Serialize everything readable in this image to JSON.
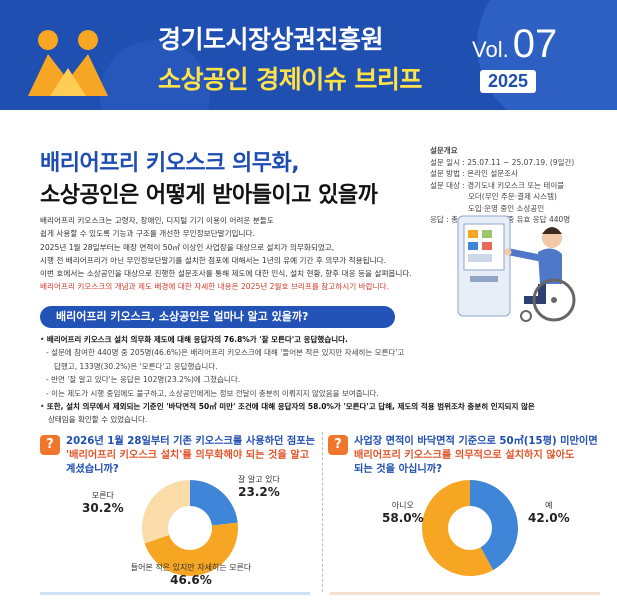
{
  "header": {
    "org": "경기도시장상권진흥원",
    "series": "소상공인 경제이슈 브리프",
    "vol_prefix": "Vol.",
    "vol_num": "07",
    "year": "2025"
  },
  "title": {
    "line1": "배리어프리 키오스크 의무화,",
    "line2": "소상공인은 어떻게 받아들이고 있을까"
  },
  "survey": {
    "heading": "설문개요",
    "period": "설문 일시 : 25.07.11 ~ 25.07.19. (9일간)",
    "method": "설문 방법 : 온라인 설문조사",
    "target1": "설문 대상 : 경기도내 키오스크 또는 테이블",
    "target2": "오더(무인 주문·결제 시스템)",
    "target3": "도입·운영 중인 소상공인",
    "response": "응답 : 총 1,113명 응답 중 유효 응답 440명"
  },
  "intro": {
    "p1": "배리어프리 키오스크는 고령자, 장애인, 디지털 기기 이용이 어려운 분들도",
    "p2": "쉽게 사용할 수 있도록 기능과 구조를 개선한 무인정보단말기입니다.",
    "p3": "2025년 1월 28일부터는 매장 면적이 50㎡ 이상인 사업장을 대상으로 설치가 의무화되었고,",
    "p4": "시행 전 배리어프리가 아닌 무인정보단말기를 설치한 점포에 대해서는 1년의 유예 기간 후 의무가 적용됩니다.",
    "p5": "이번 호에서는 소상공인을 대상으로 진행한 설문조사를 통해 제도에 대한 인식, 설치 현황, 향후 대응 등을 살펴봅니다.",
    "note": "배리어프리 키오스크의 개념과 제도 배경에 대한 자세한 내용은 2025년 2월호 브리프를 참고하시기 바랍니다."
  },
  "section": {
    "heading": "배리어프리 키오스크, 소상공인은 얼마나 알고 있을까?",
    "b1": "배리어프리 키오스크 설치 의무화 제도에 대해 응답자의 76.8%가 '잘 모른다'고 응답했습니다.",
    "s1a": "설문에 참여한 440명 중 205명(46.6%)은 배리어프리 키오스크에 대해 '들어본 적은 있지만 자세히는 모른다'고",
    "s1b": "답했고, 133명(30.2%)은 '모른다'고 응답했습니다.",
    "s2": "반면 '잘 알고 있다'는 응답은 102명(23.2%)에 그쳤습니다.",
    "s3": "이는 제도가 시행 중임에도 불구하고, 소상공인에게는 정보 전달이 충분히 이뤄지지 않았음을 보여줍니다.",
    "b2a": "또한, 설치 의무에서 제외되는 기준인 '바닥면적 50㎡ 미만' 조건에 대해 응답자의 58.0%가 '모른다'고 답해, 제도의 적용 범위조차 충분히 인지되지 않은",
    "b2b": "상태임을 확인할 수 있었습니다."
  },
  "q1": {
    "icon": "?",
    "line1": "2026년 1월 28일부터 기존 키오스크를 사용하던 점포는",
    "line2": "'배리어프리 키오스크 설치'를 의무화해야 되는 것을 알고",
    "line3": "계셨습니까?"
  },
  "q2": {
    "icon": "?",
    "line1": "사업장 면적이 바닥면적 기준으로 50㎡(15평) 미만이면",
    "line2": "배리어프리 키오스크를 의무적으로 설치하지 않아도",
    "line3": "되는 것을 아십니까?"
  },
  "chart_data": [
    {
      "type": "pie",
      "labels": [
        "잘 알고 있다",
        "들어본 적은 있지만 자세히는 모른다",
        "모른다"
      ],
      "values": [
        23.2,
        46.6,
        30.2
      ],
      "pct_labels": [
        "23.2%",
        "46.6%",
        "30.2%"
      ],
      "colors": [
        "#3f86d9",
        "#f6a623",
        "#fbdca8"
      ]
    },
    {
      "type": "pie",
      "labels": [
        "예",
        "아니오"
      ],
      "values": [
        42.0,
        58.0
      ],
      "pct_labels": [
        "42.0%",
        "58.0%"
      ],
      "colors": [
        "#3f86d9",
        "#f6a623"
      ]
    }
  ]
}
